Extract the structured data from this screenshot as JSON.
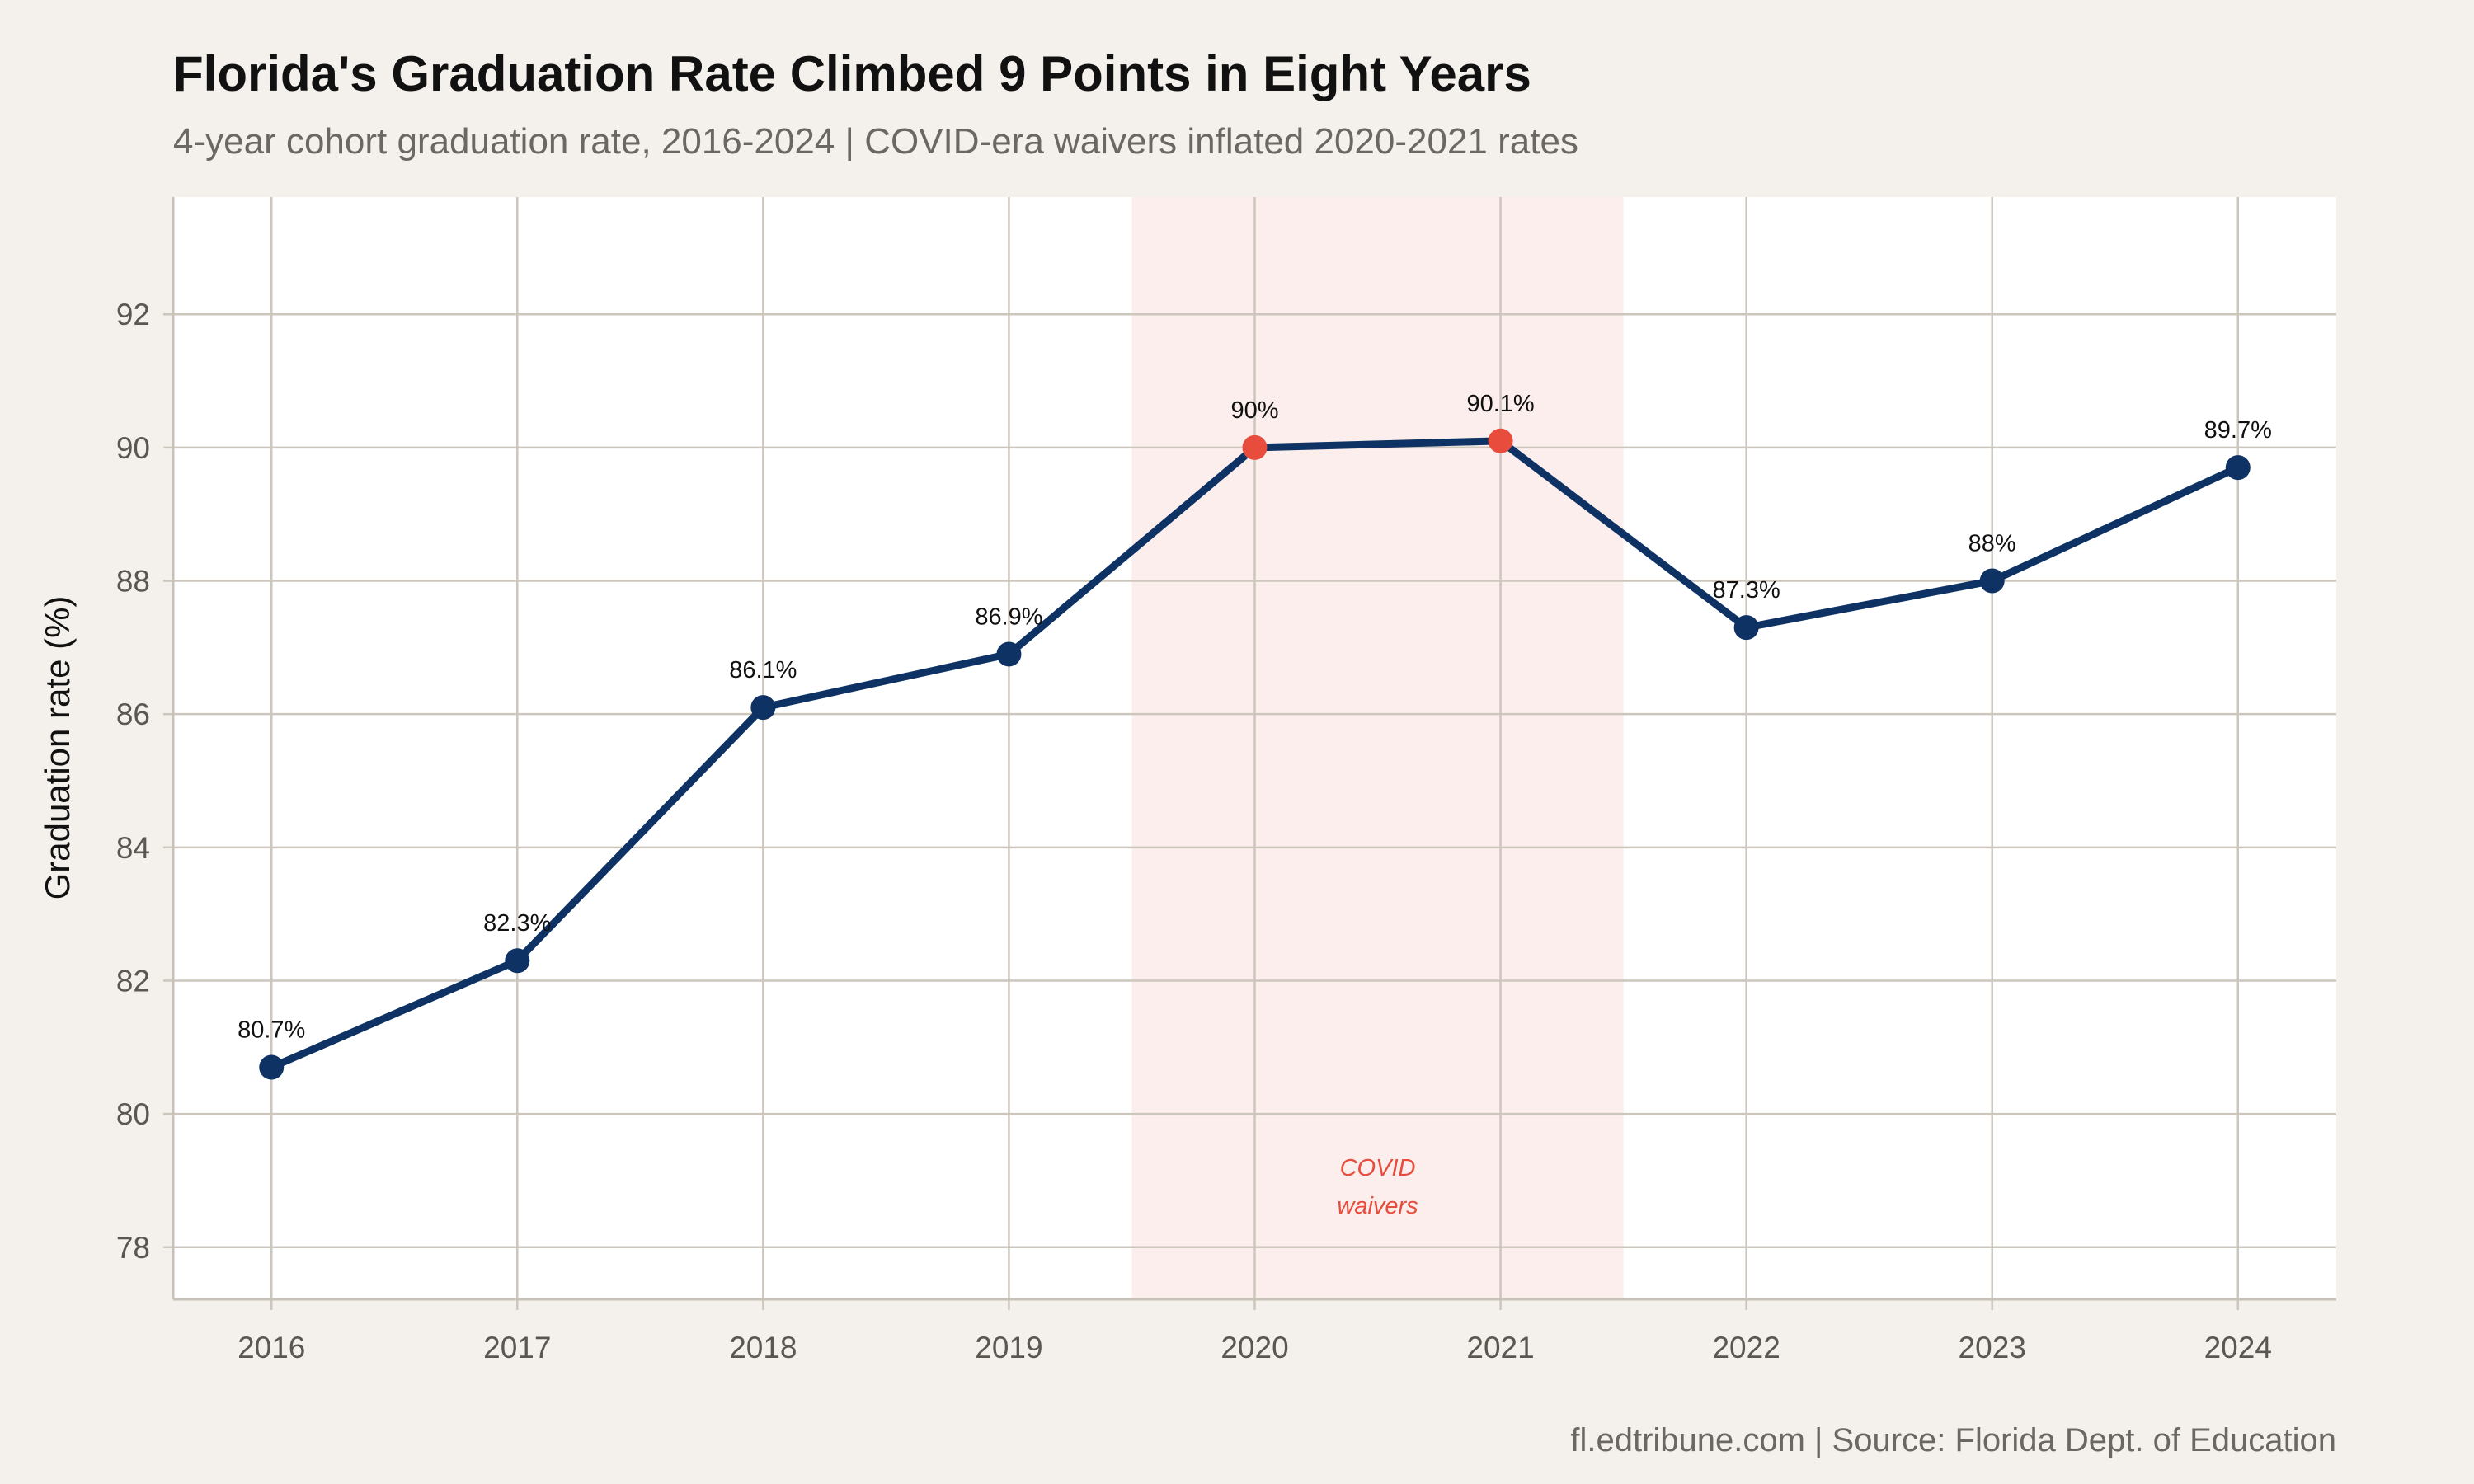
{
  "chart_data": {
    "type": "line",
    "title": "Florida's Graduation Rate Climbed 9 Points in Eight Years",
    "subtitle": "4-year cohort graduation rate, 2016-2024 | COVID-era waivers inflated 2020-2021 rates",
    "xlabel": "",
    "ylabel": "Graduation rate (%)",
    "caption": "fl.edtribune.com | Source: Florida Dept. of Education",
    "x": [
      2016,
      2017,
      2018,
      2019,
      2020,
      2021,
      2022,
      2023,
      2024
    ],
    "x_tick_labels": [
      "2016",
      "2017",
      "2018",
      "2019",
      "2020",
      "2021",
      "2022",
      "2023",
      "2024"
    ],
    "y_ticks": [
      78,
      80,
      82,
      84,
      86,
      88,
      90,
      92
    ],
    "y_tick_labels": [
      "78",
      "80",
      "82",
      "84",
      "86",
      "88",
      "90",
      "92"
    ],
    "xlim": [
      2015.6,
      2024.4
    ],
    "ylim": [
      77.23,
      93.76
    ],
    "grid": true,
    "series": [
      {
        "values": [
          80.7,
          82.3,
          86.1,
          86.9,
          90.0,
          90.1,
          87.3,
          88.0,
          89.7
        ],
        "data_labels": [
          "80.7%",
          "82.3%",
          "86.1%",
          "86.9%",
          "90%",
          "90.1%",
          "87.3%",
          "88%",
          "89.7%"
        ],
        "highlighted": [
          false,
          false,
          false,
          false,
          true,
          true,
          false,
          false,
          false
        ]
      }
    ],
    "shaded_region": {
      "x_start": 2019.5,
      "x_end": 2021.5,
      "label_line1": "COVID",
      "label_line2": "waivers",
      "label_y": 79.0
    },
    "colors": {
      "line": "#0d3263",
      "highlight": "#e74c3c",
      "shade": "#fbeeed",
      "background": "#f4f1ec",
      "panel": "#ffffff",
      "grid": "#cdc6bd"
    }
  }
}
